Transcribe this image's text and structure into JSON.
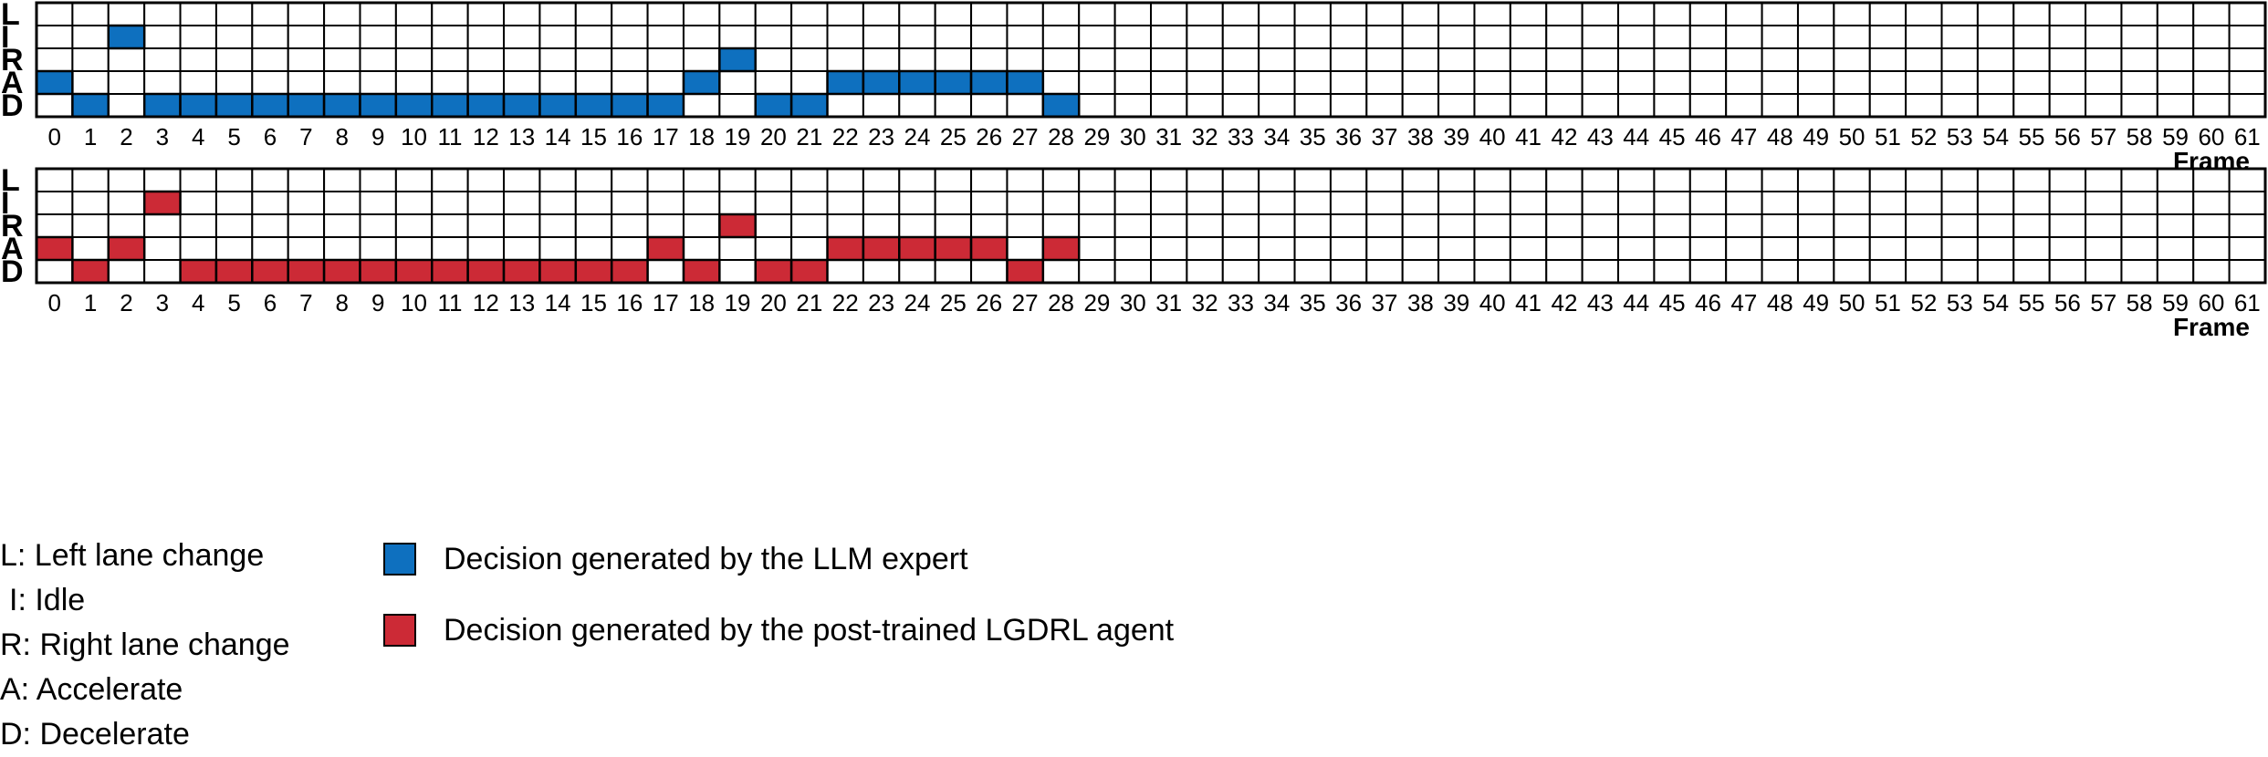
{
  "colors": {
    "expert": "#0e70bf",
    "agent": "#cc2a36",
    "grid": "#000000",
    "empty": "#ffffff"
  },
  "chart_data": {
    "type": "heatmap",
    "x": [
      0,
      1,
      2,
      3,
      4,
      5,
      6,
      7,
      8,
      9,
      10,
      11,
      12,
      13,
      14,
      15,
      16,
      17,
      18,
      19,
      20,
      21,
      22,
      23,
      24,
      25,
      26,
      27,
      28,
      29,
      30,
      31,
      32,
      33,
      34,
      35,
      36,
      37,
      38,
      39,
      40,
      41,
      42,
      43,
      44,
      45,
      46,
      47,
      48,
      49,
      50,
      51,
      52,
      53,
      54,
      55,
      56,
      57,
      58,
      59,
      60,
      61
    ],
    "xlabel": "Frame",
    "rows": [
      "L",
      "I",
      "R",
      "A",
      "D"
    ],
    "panels": [
      {
        "name": "Decision generated by the LLM expert",
        "color": "#0e70bf",
        "decisions": [
          "A",
          "D",
          "I",
          "D",
          "D",
          "D",
          "D",
          "D",
          "D",
          "D",
          "D",
          "D",
          "D",
          "D",
          "D",
          "D",
          "D",
          "D",
          "A",
          "R",
          "D",
          "D",
          "A",
          "A",
          "A",
          "A",
          "A",
          "A",
          "D"
        ]
      },
      {
        "name": "Decision generated by the post-trained LGDRL agent",
        "color": "#cc2a36",
        "decisions": [
          "A",
          "D",
          "A",
          "I",
          "D",
          "D",
          "D",
          "D",
          "D",
          "D",
          "D",
          "D",
          "D",
          "D",
          "D",
          "D",
          "D",
          "A",
          "D",
          "R",
          "D",
          "D",
          "A",
          "A",
          "A",
          "A",
          "A",
          "D",
          "A"
        ]
      }
    ]
  },
  "legend": {
    "abbreviations": [
      "L: Left lane change",
      "I: Idle",
      "R: Right lane change",
      "A: Accelerate",
      "D: Decelerate"
    ],
    "series": [
      "Decision generated by the LLM expert",
      "Decision generated by the post-trained LGDRL agent"
    ]
  }
}
